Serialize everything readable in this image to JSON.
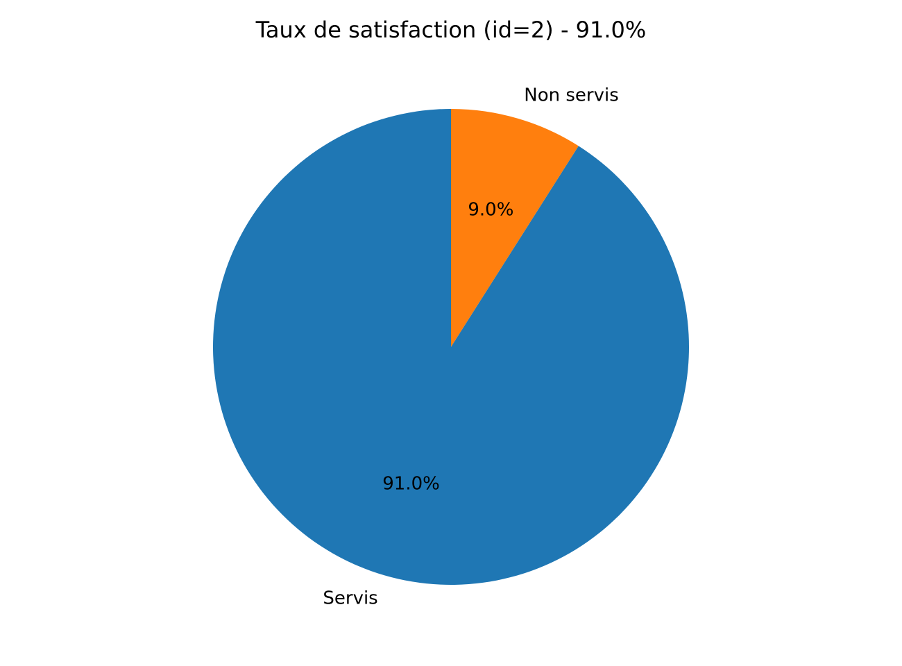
{
  "chart_data": {
    "type": "pie",
    "title": "Taux de satisfaction (id=2) - 91.0%",
    "start_angle_deg": 90,
    "direction": "counterclockwise",
    "slices": [
      {
        "label": "Servis",
        "value": 91.0,
        "pct_label": "91.0%",
        "color": "#1f77b4"
      },
      {
        "label": "Non servis",
        "value": 9.0,
        "pct_label": "9.0%",
        "color": "#ff7f0e"
      }
    ]
  }
}
